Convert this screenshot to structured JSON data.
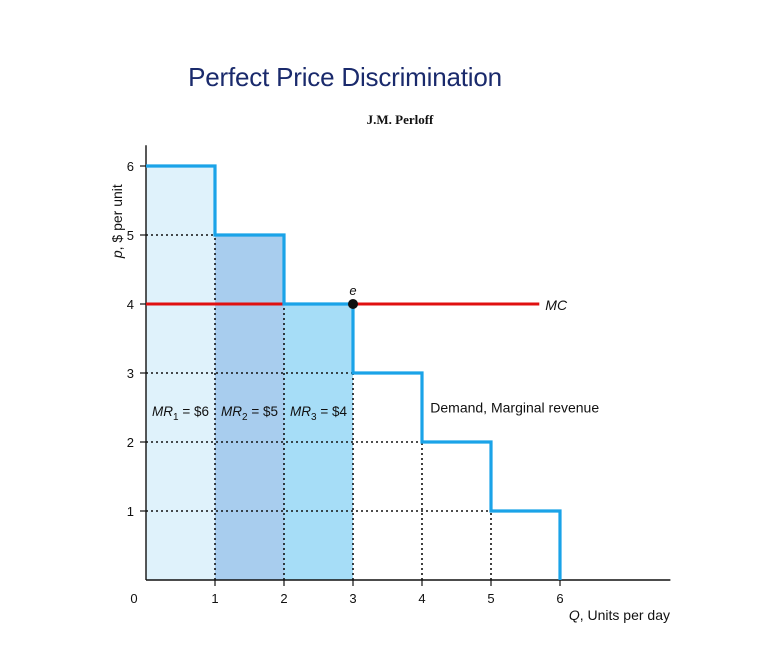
{
  "chart_data": {
    "type": "line",
    "title": "Perfect Price Discrimination",
    "subtitle": "J.M. Perloff",
    "xlabel": "Q, Units per day",
    "ylabel": "p, $ per unit",
    "xlim": [
      0,
      7.6
    ],
    "ylim": [
      0,
      6.3
    ],
    "x_ticks": [
      "0",
      "1",
      "2",
      "3",
      "4",
      "5",
      "6"
    ],
    "y_ticks": [
      "1",
      "2",
      "3",
      "4",
      "5",
      "6"
    ],
    "series": [
      {
        "name": "Demand, Marginal revenue",
        "shape": "step",
        "color": "#1aa3e8",
        "points": [
          [
            0,
            6
          ],
          [
            1,
            6
          ],
          [
            1,
            5
          ],
          [
            2,
            5
          ],
          [
            2,
            4
          ],
          [
            3,
            4
          ],
          [
            3,
            3
          ],
          [
            4,
            3
          ],
          [
            4,
            2
          ],
          [
            5,
            2
          ],
          [
            5,
            1
          ],
          [
            6,
            1
          ],
          [
            6,
            0
          ]
        ]
      },
      {
        "name": "MC",
        "color": "#e01010",
        "x": [
          0,
          5.7
        ],
        "y": [
          4,
          4
        ]
      }
    ],
    "shaded_regions": [
      {
        "x": [
          0,
          1
        ],
        "y_top": 6,
        "color": "#dff2fb"
      },
      {
        "x": [
          1,
          2
        ],
        "y_top": 5,
        "color": "#a8cdee"
      },
      {
        "x": [
          2,
          3
        ],
        "y_top": 4,
        "color": "#a6ddf7"
      }
    ],
    "annotations": {
      "point_e": {
        "label": "e",
        "x": 3,
        "y": 4
      },
      "mc_label": "MC",
      "demand_label": "Demand, Marginal revenue",
      "mr_labels": [
        {
          "name": "MR",
          "sub": "1",
          "text": " = $6",
          "x": 0.5,
          "y": 2.45
        },
        {
          "name": "MR",
          "sub": "2",
          "text": " = $5",
          "x": 1.5,
          "y": 2.45
        },
        {
          "name": "MR",
          "sub": "3",
          "text": " = $4",
          "x": 2.5,
          "y": 2.45
        }
      ]
    },
    "dotted_guides": {
      "horizontal": [
        5,
        3,
        2,
        1
      ],
      "vertical": [
        1,
        2,
        3,
        4,
        5
      ]
    }
  }
}
